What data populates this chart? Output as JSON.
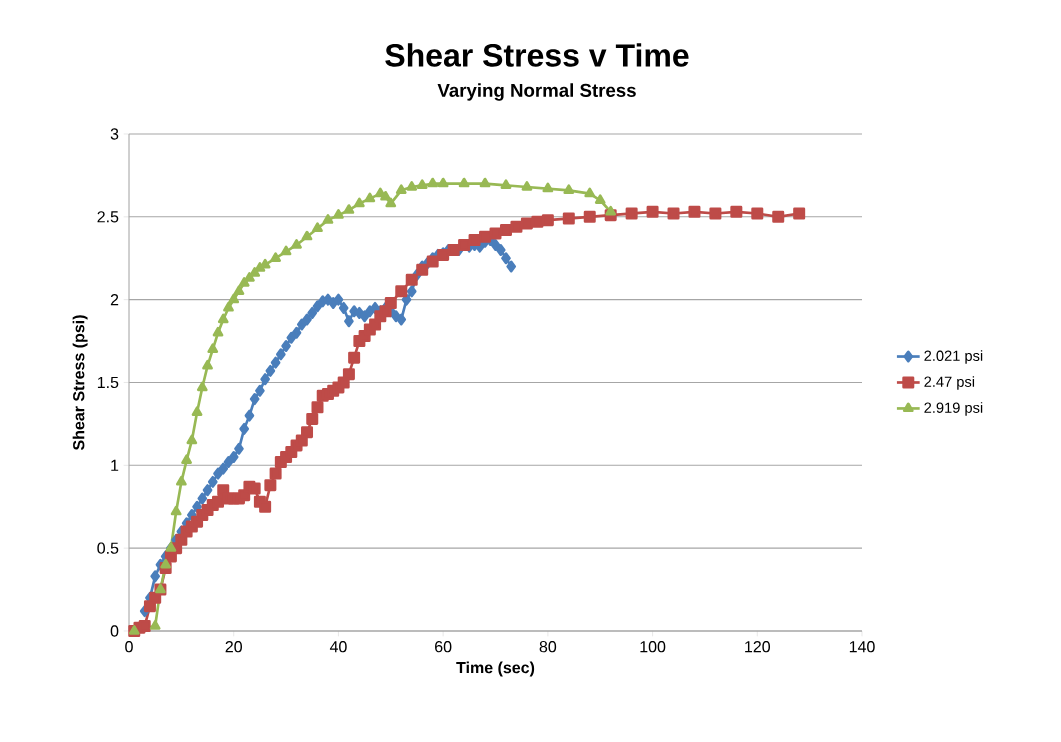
{
  "chart_data": {
    "type": "line",
    "title": "Shear Stress v Time",
    "subtitle": "Varying Normal Stress",
    "xlabel": "Time (sec)",
    "ylabel": "Shear Stress (psi)",
    "xlim": [
      0,
      140
    ],
    "xticks": [
      0,
      20,
      40,
      60,
      80,
      100,
      120,
      140
    ],
    "ylim": [
      0,
      3
    ],
    "yticks": [
      0,
      0.5,
      1,
      1.5,
      2,
      2.5,
      3
    ],
    "grid": "y",
    "legend": "right",
    "series": [
      {
        "name": "2.021 psi",
        "color": "#4a7ebb",
        "marker": "diamond",
        "x": [
          3,
          4,
          5,
          6,
          7,
          8,
          9,
          10,
          11,
          12,
          13,
          14,
          15,
          16,
          17,
          18,
          19,
          20,
          21,
          22,
          23,
          24,
          25,
          26,
          27,
          28,
          29,
          30,
          31,
          32,
          33,
          34,
          35,
          36,
          37,
          38,
          39,
          40,
          41,
          42,
          43,
          44,
          45,
          46,
          47,
          48,
          49,
          50,
          51,
          52,
          53,
          54,
          55,
          56,
          57,
          58,
          59,
          60,
          61,
          62,
          63,
          64,
          65,
          66,
          67,
          68,
          69,
          70,
          71,
          72,
          73
        ],
        "values": [
          0.12,
          0.2,
          0.33,
          0.4,
          0.45,
          0.5,
          0.55,
          0.6,
          0.65,
          0.7,
          0.75,
          0.8,
          0.85,
          0.9,
          0.95,
          0.98,
          1.02,
          1.05,
          1.1,
          1.22,
          1.3,
          1.4,
          1.45,
          1.52,
          1.57,
          1.62,
          1.67,
          1.72,
          1.77,
          1.8,
          1.85,
          1.88,
          1.92,
          1.96,
          1.99,
          2.0,
          1.98,
          2.0,
          1.95,
          1.87,
          1.93,
          1.92,
          1.9,
          1.93,
          1.95,
          1.93,
          1.95,
          1.93,
          1.9,
          1.88,
          2.0,
          2.05,
          2.15,
          2.2,
          2.22,
          2.25,
          2.27,
          2.28,
          2.3,
          null,
          2.3,
          null,
          2.32,
          2.33,
          2.32,
          2.35,
          2.36,
          2.33,
          2.3,
          2.25,
          2.2
        ]
      },
      {
        "name": "2.47 psi",
        "color": "#be4b48",
        "marker": "square",
        "x": [
          1,
          2,
          3,
          4,
          5,
          6,
          7,
          8,
          9,
          10,
          11,
          12,
          13,
          14,
          15,
          16,
          17,
          18,
          19,
          20,
          21,
          22,
          23,
          24,
          25,
          26,
          27,
          28,
          29,
          30,
          31,
          32,
          33,
          34,
          35,
          36,
          37,
          38,
          39,
          40,
          41,
          42,
          43,
          44,
          45,
          46,
          47,
          48,
          49,
          50,
          52,
          54,
          56,
          58,
          60,
          62,
          64,
          66,
          68,
          70,
          72,
          74,
          76,
          78,
          80,
          84,
          88,
          92,
          96,
          100,
          104,
          108,
          112,
          116,
          120,
          124,
          128
        ],
        "values": [
          0,
          0.02,
          0.03,
          0.15,
          0.2,
          0.25,
          0.38,
          0.45,
          0.5,
          0.55,
          0.6,
          0.63,
          0.66,
          0.7,
          0.73,
          0.76,
          0.78,
          0.85,
          0.8,
          0.8,
          0.8,
          0.82,
          0.87,
          0.86,
          0.78,
          0.75,
          0.88,
          0.95,
          1.02,
          1.05,
          1.08,
          1.12,
          1.15,
          1.2,
          1.28,
          1.35,
          1.42,
          1.43,
          1.45,
          1.47,
          1.5,
          1.55,
          1.65,
          1.75,
          1.78,
          1.82,
          1.85,
          1.9,
          1.93,
          1.98,
          2.05,
          2.12,
          2.18,
          2.23,
          2.27,
          2.3,
          2.33,
          2.36,
          2.38,
          2.4,
          2.42,
          2.44,
          2.46,
          2.47,
          2.48,
          2.49,
          2.5,
          2.51,
          2.52,
          2.53,
          2.52,
          2.53,
          2.52,
          2.53,
          2.52,
          2.5,
          2.52
        ]
      },
      {
        "name": "2.919 psi",
        "color": "#98b954",
        "marker": "triangle",
        "x": [
          1,
          5,
          6,
          7,
          8,
          9,
          10,
          11,
          12,
          13,
          14,
          15,
          16,
          17,
          18,
          19,
          20,
          21,
          22,
          23,
          24,
          25,
          26,
          28,
          30,
          32,
          34,
          36,
          38,
          40,
          42,
          44,
          46,
          48,
          49,
          50,
          52,
          54,
          56,
          58,
          60,
          64,
          68,
          72,
          76,
          80,
          84,
          88,
          90,
          92
        ],
        "values": [
          0,
          0.03,
          0.25,
          0.4,
          0.5,
          0.72,
          0.9,
          1.03,
          1.15,
          1.32,
          1.47,
          1.6,
          1.7,
          1.8,
          1.88,
          1.95,
          2.0,
          2.05,
          2.1,
          2.13,
          2.16,
          2.19,
          2.21,
          2.25,
          2.29,
          2.33,
          2.38,
          2.43,
          2.48,
          2.51,
          2.54,
          2.58,
          2.61,
          2.64,
          2.62,
          2.58,
          2.66,
          2.68,
          2.69,
          2.7,
          2.7,
          2.7,
          2.7,
          2.69,
          2.68,
          2.67,
          2.66,
          2.64,
          2.6,
          2.53
        ]
      }
    ]
  }
}
